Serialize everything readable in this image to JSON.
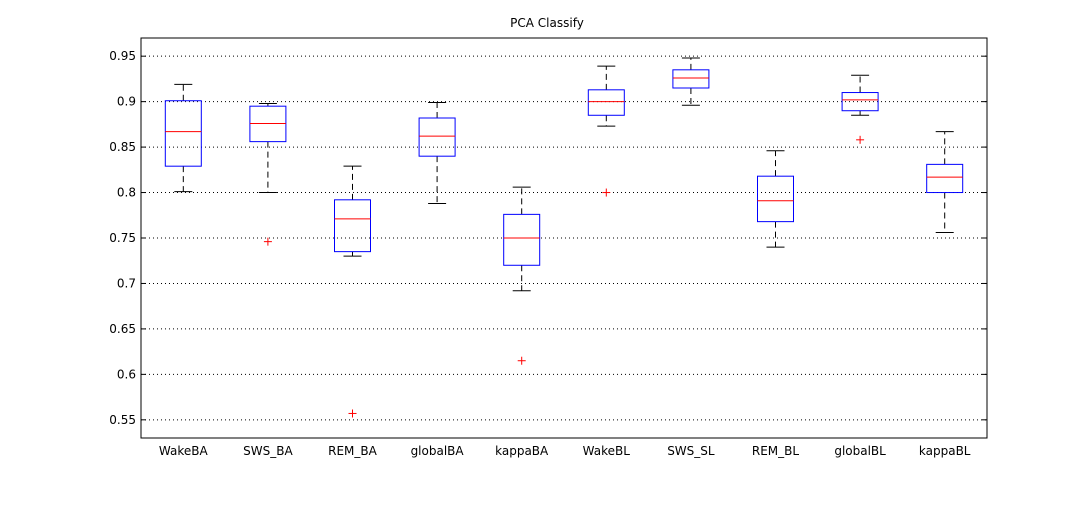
{
  "chart_data": {
    "type": "boxplot",
    "title": "PCA Classify",
    "xlabel": "",
    "ylabel": "",
    "ylim": [
      0.53,
      0.97
    ],
    "yticks": [
      0.55,
      0.6,
      0.65,
      0.7,
      0.75,
      0.8,
      0.85,
      0.9,
      0.95
    ],
    "ytick_labels": [
      "0.55",
      "0.6",
      "0.65",
      "0.7",
      "0.75",
      "0.8",
      "0.85",
      "0.9",
      "0.95"
    ],
    "grid": "y-dotted",
    "categories": [
      "WakeBA",
      "SWS_BA",
      "REM_BA",
      "globalBA",
      "kappaBA",
      "WakeBL",
      "SWS_SL",
      "REM_BL",
      "globalBL",
      "kappaBL"
    ],
    "boxes": [
      {
        "label": "WakeBA",
        "whisker_low": 0.801,
        "q1": 0.829,
        "median": 0.867,
        "q3": 0.901,
        "whisker_high": 0.919,
        "outliers": []
      },
      {
        "label": "SWS_BA",
        "whisker_low": 0.8,
        "q1": 0.856,
        "median": 0.876,
        "q3": 0.895,
        "whisker_high": 0.898,
        "outliers": [
          0.746
        ]
      },
      {
        "label": "REM_BA",
        "whisker_low": 0.73,
        "q1": 0.735,
        "median": 0.771,
        "q3": 0.792,
        "whisker_high": 0.829,
        "outliers": [
          0.557
        ]
      },
      {
        "label": "globalBA",
        "whisker_low": 0.788,
        "q1": 0.84,
        "median": 0.862,
        "q3": 0.882,
        "whisker_high": 0.899,
        "outliers": []
      },
      {
        "label": "kappaBA",
        "whisker_low": 0.692,
        "q1": 0.72,
        "median": 0.75,
        "q3": 0.776,
        "whisker_high": 0.806,
        "outliers": [
          0.615
        ]
      },
      {
        "label": "WakeBL",
        "whisker_low": 0.873,
        "q1": 0.885,
        "median": 0.9,
        "q3": 0.913,
        "whisker_high": 0.939,
        "outliers": [
          0.8
        ]
      },
      {
        "label": "SWS_SL",
        "whisker_low": 0.896,
        "q1": 0.915,
        "median": 0.926,
        "q3": 0.935,
        "whisker_high": 0.948,
        "outliers": []
      },
      {
        "label": "REM_BL",
        "whisker_low": 0.74,
        "q1": 0.768,
        "median": 0.791,
        "q3": 0.818,
        "whisker_high": 0.846,
        "outliers": []
      },
      {
        "label": "globalBL",
        "whisker_low": 0.885,
        "q1": 0.89,
        "median": 0.902,
        "q3": 0.91,
        "whisker_high": 0.929,
        "outliers": [
          0.858
        ]
      },
      {
        "label": "kappaBL",
        "whisker_low": 0.756,
        "q1": 0.8,
        "median": 0.817,
        "q3": 0.831,
        "whisker_high": 0.867,
        "outliers": []
      }
    ],
    "colors": {
      "box": "#0000ff",
      "median": "#ff0000",
      "whisker": "#000000",
      "outlier": "#ff0000",
      "grid": "#000000"
    }
  }
}
